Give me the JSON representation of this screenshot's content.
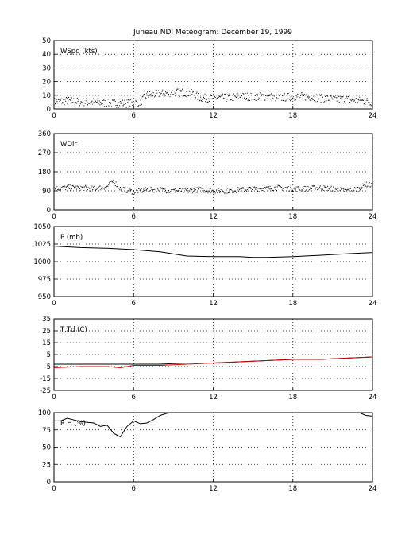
{
  "chart_data": {
    "title": "Juneau NDI Meteogram:   December 19, 1999",
    "x": {
      "ticks": [
        0,
        6,
        12,
        18,
        24
      ],
      "range": [
        0,
        24
      ]
    },
    "grid": true,
    "panels": [
      {
        "id": "wspd",
        "type": "scatter",
        "label": "WSpd (kts)",
        "ylim": [
          0,
          50
        ],
        "yticks": [
          0,
          10,
          20,
          30,
          40,
          50
        ],
        "color": "#000000",
        "series": [
          {
            "x": [
              0,
              1,
              2,
              3,
              4,
              5,
              6,
              6.5,
              7,
              8,
              9,
              10,
              10.5,
              11,
              12,
              13,
              14,
              15,
              16,
              17,
              18,
              19,
              20,
              21,
              22,
              23,
              24
            ],
            "values": [
              5,
              6,
              5,
              5,
              4,
              4,
              4,
              5,
              10,
              11,
              12,
              12,
              11,
              8,
              8,
              8,
              9,
              9,
              9,
              8,
              9,
              9,
              8,
              7,
              7,
              6,
              5
            ]
          }
        ]
      },
      {
        "id": "wdir",
        "type": "scatter",
        "label": "WDir",
        "ylim": [
          0,
          360
        ],
        "yticks": [
          0,
          90,
          180,
          270,
          360
        ],
        "color": "#000000",
        "series": [
          {
            "x": [
              0,
              1,
              2,
              3,
              4,
              4.5,
              5,
              6,
              7,
              8,
              9,
              10,
              11,
              12,
              13,
              14,
              15,
              16,
              17,
              18,
              19,
              20,
              21,
              22,
              23,
              23.5,
              24
            ],
            "values": [
              100,
              105,
              105,
              100,
              110,
              135,
              100,
              85,
              95,
              95,
              90,
              90,
              95,
              90,
              90,
              95,
              100,
              100,
              105,
              100,
              100,
              105,
              100,
              90,
              100,
              120,
              115
            ]
          }
        ]
      },
      {
        "id": "pressure",
        "type": "line",
        "label": "P (mb)",
        "ylim": [
          950,
          1050
        ],
        "yticks": [
          950,
          975,
          1000,
          1025,
          1050
        ],
        "color": "#000000",
        "series": [
          {
            "x": [
              0,
              2,
              4,
              6,
              8,
              10,
              12,
              14,
              15,
              16,
              18,
              20,
              22,
              24
            ],
            "values": [
              1022,
              1020,
              1019,
              1017,
              1014,
              1008,
              1007,
              1007,
              1006,
              1006,
              1007,
              1009,
              1011,
              1013
            ]
          }
        ]
      },
      {
        "id": "temp",
        "type": "line",
        "label": "T,Td (C)",
        "ylim": [
          -25,
          35
        ],
        "yticks": [
          -25,
          -15,
          -5,
          5,
          15,
          25,
          35
        ],
        "series": [
          {
            "name": "T",
            "color": "#000000",
            "x": [
              0,
              2,
              4,
              5,
              6,
              8,
              10,
              12,
              14,
              16,
              18,
              20,
              22,
              24
            ],
            "values": [
              -3,
              -3,
              -3,
              -3,
              -3,
              -3,
              -2,
              -2,
              -1,
              0,
              1,
              1,
              2,
              3
            ]
          },
          {
            "name": "Td",
            "color": "#cc0000",
            "x": [
              0,
              2,
              4,
              5,
              5.5,
              6,
              8,
              10,
              12,
              14,
              16,
              18,
              20,
              22,
              24
            ],
            "values": [
              -6,
              -5,
              -5,
              -6,
              -5,
              -4,
              -4,
              -3,
              -2,
              -1,
              0,
              1,
              1,
              2,
              3
            ]
          }
        ]
      },
      {
        "id": "rh",
        "type": "line",
        "label": "R.H.(%)",
        "ylim": [
          0,
          100
        ],
        "yticks": [
          0,
          25,
          50,
          75,
          100
        ],
        "color": "#000000",
        "series": [
          {
            "x": [
              0,
              0.5,
              1,
              2,
              2.5,
              3,
              3.5,
              4,
              4.5,
              5,
              5.5,
              6,
              6.5,
              7,
              7.5,
              8,
              8.5,
              9,
              10,
              12,
              15,
              18,
              20,
              22,
              23,
              23.5,
              24
            ],
            "values": [
              88,
              88,
              92,
              87,
              86,
              85,
              80,
              82,
              70,
              65,
              80,
              88,
              84,
              85,
              90,
              96,
              99,
              100,
              100,
              100,
              100,
              100,
              100,
              100,
              100,
              96,
              95
            ]
          }
        ]
      }
    ]
  }
}
